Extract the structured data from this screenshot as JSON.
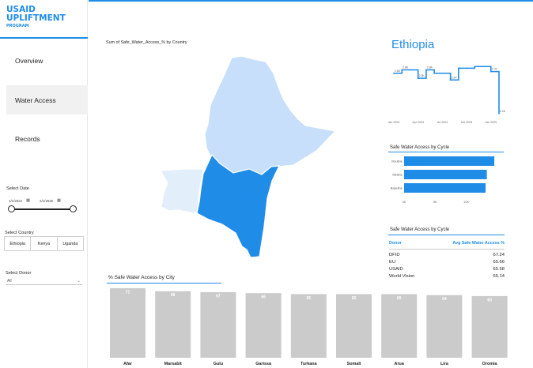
{
  "brand": {
    "line1": "USAID",
    "line2": "UPLIFTMENT",
    "line3": "PROGRAM",
    "color": "#1f8ce8"
  },
  "nav": {
    "items": [
      {
        "label": "Overview"
      },
      {
        "label": "Water Access"
      },
      {
        "label": "Records"
      }
    ],
    "active": "Water Access"
  },
  "filters": {
    "date_label": "Select Date",
    "date_start": "1/1/2024",
    "date_end": "2/1/2025",
    "country_label": "Select Country",
    "countries": [
      "Ethiopia",
      "Kenya",
      "Uganda"
    ],
    "donor_label": "Select Donor",
    "donor_value": "All"
  },
  "map": {
    "title": "Sum of Safe_Water_Access_% by Country",
    "countries": [
      {
        "name": "Ethiopia",
        "color": "#c7dffb"
      },
      {
        "name": "Kenya",
        "color": "#1f8ce8"
      },
      {
        "name": "Uganda",
        "color": "#e3eefb"
      }
    ]
  },
  "country_title": "Ethiopia",
  "trend": {
    "type": "line",
    "x": [
      "Jan 2024",
      "Feb 2024",
      "Mar 2024",
      "Apr 2024",
      "May 2024",
      "Jun 2024",
      "Jul 2024",
      "Aug 2024",
      "Sep 2024",
      "Oct 2024",
      "Nov 2024",
      "Dec 2024",
      "Jan 2025",
      "Feb 2025"
    ],
    "y": [
      2.6,
      2.8,
      2.8,
      2.3,
      2.8,
      2.6,
      2.6,
      2.2,
      2.9,
      2.9,
      3.0,
      3.0,
      2.7,
      0.2
    ],
    "labels": [
      "2.6K",
      "2.8K",
      "2.8K",
      "2.3K",
      "2.8K",
      "2.6K",
      "2.6K",
      "2.2K",
      "2.9K",
      "2.9K",
      "3.0K",
      "3.0K",
      "2.7K",
      "0.2K"
    ],
    "shown_labels": [
      0,
      1,
      3,
      4,
      7,
      12,
      13
    ],
    "tick_labels": [
      "Jan 2024",
      "Apr 2024",
      "Jul 2024",
      "Oct 2024",
      "Jan 2025"
    ],
    "tick_index": [
      0,
      3,
      6,
      9,
      12
    ],
    "color": "#1f8ce8"
  },
  "cycle_chart": {
    "type": "bar",
    "title": "Safe Water Access by Cycle",
    "categories": [
      "Routine",
      "Midline",
      "Baseline"
    ],
    "values": [
      14.5,
      13.3,
      13.1
    ],
    "ticks": [
      "0K",
      "5K",
      "10K"
    ],
    "xlim": [
      0,
      15
    ],
    "color": "#1f8ce8"
  },
  "table": {
    "title": "Safe Water Access by Cycle",
    "columns": [
      "Donor",
      "Avg Safe Water Access %"
    ],
    "rows": [
      {
        "donor": "DFID",
        "value": "67.24"
      },
      {
        "donor": "EU",
        "value": "65.66"
      },
      {
        "donor": "USAID",
        "value": "65.58"
      },
      {
        "donor": "World Vision",
        "value": "65.14"
      }
    ]
  },
  "chart_data": [
    {
      "type": "bar",
      "title": "% Safe Water Access by City",
      "categories": [
        "Afar",
        "Marsabit",
        "Gulu",
        "Garissa",
        "Turkana",
        "Somali",
        "Arua",
        "Lira",
        "Oromia"
      ],
      "values": [
        71,
        68,
        67,
        66,
        65,
        65,
        65,
        64,
        63
      ],
      "ylim": [
        0,
        71
      ],
      "color": "#cbcbcb"
    },
    {
      "type": "bar",
      "title": "Safe Water Access by Cycle",
      "categories": [
        "Routine",
        "Midline",
        "Baseline"
      ],
      "values": [
        14.5,
        13.3,
        13.1
      ],
      "xlim": [
        0,
        15
      ]
    },
    {
      "type": "line",
      "title": "Ethiopia",
      "x": [
        "Jan 2024",
        "Feb 2024",
        "Mar 2024",
        "Apr 2024",
        "May 2024",
        "Jun 2024",
        "Jul 2024",
        "Aug 2024",
        "Sep 2024",
        "Oct 2024",
        "Nov 2024",
        "Dec 2024",
        "Jan 2025",
        "Feb 2025"
      ],
      "y": [
        2.6,
        2.8,
        2.8,
        2.3,
        2.8,
        2.6,
        2.6,
        2.2,
        2.9,
        2.9,
        3.0,
        3.0,
        2.7,
        0.2
      ]
    }
  ]
}
